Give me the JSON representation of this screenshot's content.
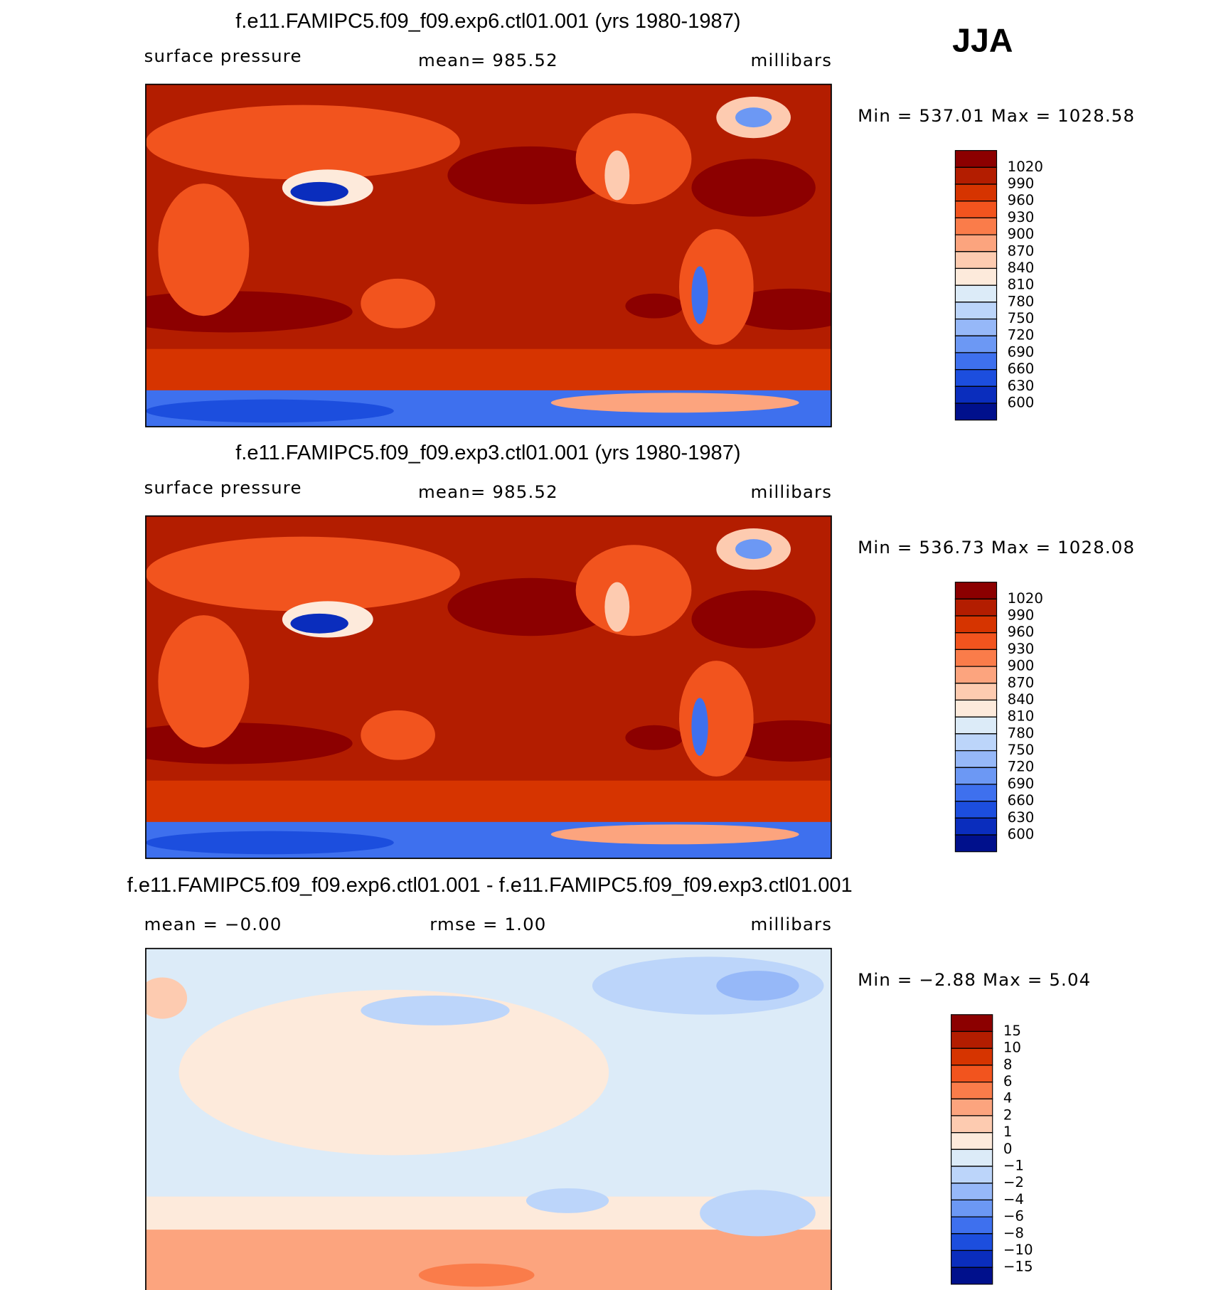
{
  "header": {
    "season": "JJA"
  },
  "panels": [
    {
      "title": "f.e11.FAMIPC5.f09_f09.exp6.ctl01.001 (yrs 1980-1987)",
      "left": "surface pressure",
      "center": "mean= 985.52",
      "right": "millibars",
      "minmax": "Min = 537.01 Max = 1028.58",
      "colorbar": {
        "levels": [
          1020,
          990,
          960,
          930,
          900,
          870,
          840,
          810,
          780,
          750,
          720,
          690,
          660,
          630,
          600
        ],
        "colors": [
          "#8c0000",
          "#b31d00",
          "#d63400",
          "#f2541e",
          "#fa7c4a",
          "#fca47e",
          "#fdcbb0",
          "#fdeadb",
          "#dcebf8",
          "#bcd5fa",
          "#96b8f8",
          "#6c98f4",
          "#3e70ee",
          "#1c4ede",
          "#0a2dbd",
          "#00108c"
        ]
      }
    },
    {
      "title": "f.e11.FAMIPC5.f09_f09.exp3.ctl01.001 (yrs 1980-1987)",
      "left": "surface pressure",
      "center": "mean= 985.52",
      "right": "millibars",
      "minmax": "Min = 536.73 Max = 1028.08",
      "colorbar": {
        "levels": [
          1020,
          990,
          960,
          930,
          900,
          870,
          840,
          810,
          780,
          750,
          720,
          690,
          660,
          630,
          600
        ],
        "colors": [
          "#8c0000",
          "#b31d00",
          "#d63400",
          "#f2541e",
          "#fa7c4a",
          "#fca47e",
          "#fdcbb0",
          "#fdeadb",
          "#dcebf8",
          "#bcd5fa",
          "#96b8f8",
          "#6c98f4",
          "#3e70ee",
          "#1c4ede",
          "#0a2dbd",
          "#00108c"
        ]
      }
    },
    {
      "title": "f.e11.FAMIPC5.f09_f09.exp6.ctl01.001 - f.e11.FAMIPC5.f09_f09.exp3.ctl01.001",
      "left": "mean =   −0.00",
      "center": "rmse =    1.00",
      "right": "millibars",
      "minmax": "Min =   −2.88 Max =    5.04",
      "colorbar": {
        "levels": [
          15,
          10,
          8,
          6,
          4,
          2,
          1,
          0,
          {
            "value": -1,
            "label": "−1"
          },
          {
            "value": -2,
            "label": "−2"
          },
          {
            "value": -4,
            "label": "−4"
          },
          {
            "value": -6,
            "label": "−6"
          },
          {
            "value": -8,
            "label": "−8"
          },
          {
            "value": -10,
            "label": "−10"
          },
          {
            "value": -15,
            "label": "−15"
          }
        ],
        "colors": [
          "#8c0000",
          "#b31d00",
          "#d63400",
          "#f2541e",
          "#fa7c4a",
          "#fca47e",
          "#fdcbb0",
          "#fdeadb",
          "#dcebf8",
          "#bcd5fa",
          "#96b8f8",
          "#6c98f4",
          "#3e70ee",
          "#1c4ede",
          "#0a2dbd",
          "#00108c"
        ]
      }
    }
  ]
}
